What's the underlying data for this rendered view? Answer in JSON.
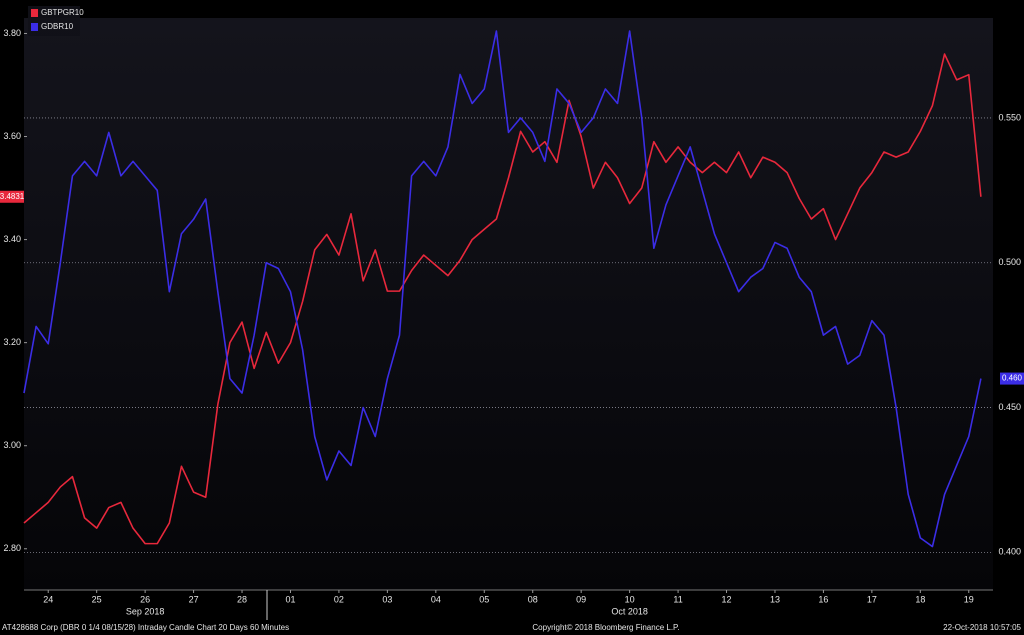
{
  "chart_data": {
    "type": "line",
    "legend": "top-left",
    "grid": true,
    "xlim": [
      0,
      20
    ],
    "xticks": [
      {
        "value": 0.5,
        "label": "24"
      },
      {
        "value": 1.5,
        "label": "25"
      },
      {
        "value": 2.5,
        "label": "26"
      },
      {
        "value": 3.5,
        "label": "27"
      },
      {
        "value": 4.5,
        "label": "28"
      },
      {
        "value": 5.5,
        "label": "01"
      },
      {
        "value": 6.5,
        "label": "02"
      },
      {
        "value": 7.5,
        "label": "03"
      },
      {
        "value": 8.5,
        "label": "04"
      },
      {
        "value": 9.5,
        "label": "05"
      },
      {
        "value": 10.5,
        "label": "08"
      },
      {
        "value": 11.5,
        "label": "09"
      },
      {
        "value": 12.5,
        "label": "10"
      },
      {
        "value": 13.5,
        "label": "11"
      },
      {
        "value": 14.5,
        "label": "12"
      },
      {
        "value": 15.5,
        "label": "13"
      },
      {
        "value": 16.5,
        "label": "16"
      },
      {
        "value": 17.5,
        "label": "17"
      },
      {
        "value": 18.5,
        "label": "18"
      },
      {
        "value": 19.5,
        "label": "19"
      }
    ],
    "x_group_labels": [
      {
        "value": 2.5,
        "label": "Sep 2018"
      },
      {
        "value": 12.5,
        "label": "Oct 2018"
      }
    ],
    "ylim": [
      2.72,
      3.83
    ],
    "yticks": [
      {
        "value": 2.8,
        "label": "2.80"
      },
      {
        "value": 3.0,
        "label": "3.00"
      },
      {
        "value": 3.2,
        "label": "3.20"
      },
      {
        "value": 3.4,
        "label": "3.40"
      },
      {
        "value": 3.6,
        "label": "3.60"
      },
      {
        "value": 3.8,
        "label": "3.80"
      }
    ],
    "y2lim": [
      0.387,
      0.5845
    ],
    "y2ticks": [
      {
        "value": 0.4,
        "label": "0.400"
      },
      {
        "value": 0.45,
        "label": "0.450"
      },
      {
        "value": 0.5,
        "label": "0.500"
      },
      {
        "value": 0.55,
        "label": "0.550"
      }
    ],
    "x": [
      0,
      0.25,
      0.5,
      0.75,
      1,
      1.25,
      1.5,
      1.75,
      2,
      2.25,
      2.5,
      2.75,
      3,
      3.25,
      3.5,
      3.75,
      4,
      4.25,
      4.5,
      4.75,
      5,
      5.25,
      5.5,
      5.75,
      6,
      6.25,
      6.5,
      6.75,
      7,
      7.25,
      7.5,
      7.75,
      8,
      8.25,
      8.5,
      8.75,
      9,
      9.25,
      9.5,
      9.75,
      10,
      10.25,
      10.5,
      10.75,
      11,
      11.25,
      11.5,
      11.75,
      12,
      12.25,
      12.5,
      12.75,
      13,
      13.25,
      13.5,
      13.75,
      14,
      14.25,
      14.5,
      14.75,
      15,
      15.25,
      15.5,
      15.75,
      16,
      16.25,
      16.5,
      16.75,
      17,
      17.25,
      17.5,
      17.75,
      18,
      18.25,
      18.5,
      18.75,
      19,
      19.25,
      19.5,
      19.75
    ],
    "series": [
      {
        "name": "GBTPGR10",
        "color": "#e8283c",
        "axis": "y",
        "last_value_label": "3.4831",
        "values": [
          2.85,
          2.87,
          2.89,
          2.92,
          2.94,
          2.86,
          2.84,
          2.88,
          2.89,
          2.84,
          2.81,
          2.81,
          2.85,
          2.96,
          2.91,
          2.9,
          3.08,
          3.2,
          3.24,
          3.15,
          3.22,
          3.16,
          3.2,
          3.28,
          3.38,
          3.41,
          3.37,
          3.45,
          3.32,
          3.38,
          3.3,
          3.3,
          3.34,
          3.37,
          3.35,
          3.33,
          3.36,
          3.4,
          3.42,
          3.44,
          3.52,
          3.61,
          3.57,
          3.59,
          3.55,
          3.67,
          3.6,
          3.5,
          3.55,
          3.52,
          3.47,
          3.5,
          3.59,
          3.55,
          3.58,
          3.55,
          3.53,
          3.55,
          3.53,
          3.57,
          3.52,
          3.56,
          3.55,
          3.53,
          3.48,
          3.44,
          3.46,
          3.4,
          3.45,
          3.5,
          3.53,
          3.57,
          3.56,
          3.57,
          3.61,
          3.66,
          3.76,
          3.71,
          3.72,
          3.4831
        ]
      },
      {
        "name": "GDBR10",
        "color": "#3b2de6",
        "axis": "y2",
        "last_value_label": "0.460",
        "values": [
          0.455,
          0.478,
          0.472,
          0.5,
          0.53,
          0.535,
          0.53,
          0.545,
          0.53,
          0.535,
          0.53,
          0.525,
          0.49,
          0.51,
          0.515,
          0.522,
          0.49,
          0.46,
          0.455,
          0.475,
          0.5,
          0.498,
          0.49,
          0.47,
          0.44,
          0.425,
          0.435,
          0.43,
          0.45,
          0.44,
          0.46,
          0.475,
          0.53,
          0.535,
          0.53,
          0.54,
          0.565,
          0.555,
          0.56,
          0.58,
          0.545,
          0.55,
          0.545,
          0.535,
          0.56,
          0.555,
          0.545,
          0.55,
          0.56,
          0.555,
          0.58,
          0.55,
          0.505,
          0.52,
          0.53,
          0.54,
          0.525,
          0.51,
          0.5,
          0.49,
          0.495,
          0.498,
          0.507,
          0.505,
          0.495,
          0.49,
          0.475,
          0.478,
          0.465,
          0.468,
          0.48,
          0.475,
          0.45,
          0.42,
          0.405,
          0.402,
          0.42,
          0.43,
          0.44,
          0.46
        ]
      }
    ],
    "footer": {
      "left": "AT428688 Corp (DBR 0 1/4 08/15/28) Intraday Candle Chart 20 Days 60 Minutes",
      "center": "Copyright© 2018 Bloomberg Finance L.P.",
      "right": "22-Oct-2018 10:57:05"
    }
  }
}
